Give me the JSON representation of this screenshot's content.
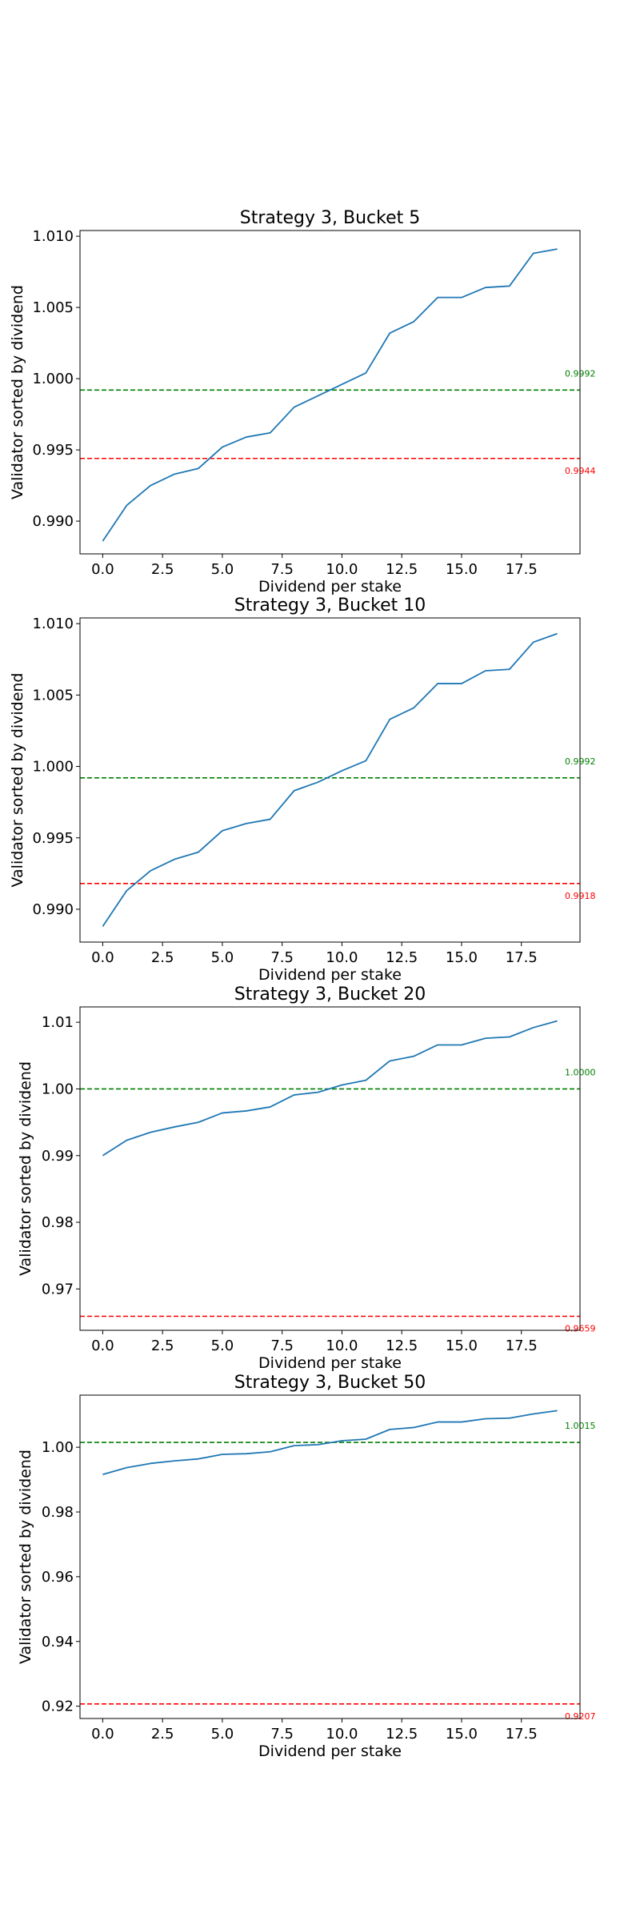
{
  "chart_data": [
    {
      "type": "line",
      "title": "Strategy 3, Bucket 5",
      "xlabel": "Dividend per stake",
      "ylabel": "Validator sorted by dividend",
      "xlim": [
        -0.95,
        19.95
      ],
      "ylim": [
        0.9877,
        1.0104
      ],
      "xticks": [
        "0.0",
        "2.5",
        "5.0",
        "7.5",
        "10.0",
        "12.5",
        "15.0",
        "17.5"
      ],
      "yticks": [
        "0.990",
        "0.995",
        "1.000",
        "1.005",
        "1.010"
      ],
      "series": [
        {
          "color": "#1f77b4",
          "x": [
            0,
            1,
            2,
            3,
            4,
            5,
            6,
            7,
            8,
            9,
            10,
            11,
            12,
            13,
            14,
            15,
            16,
            17,
            18,
            19
          ],
          "values": [
            0.9886,
            0.9911,
            0.9925,
            0.9933,
            0.9937,
            0.9952,
            0.9959,
            0.9962,
            0.998,
            0.9988,
            0.9996,
            1.0004,
            1.0032,
            1.004,
            1.0057,
            1.0057,
            1.0064,
            1.0065,
            1.0088,
            1.0091
          ]
        }
      ],
      "reference_lines": [
        {
          "value": 0.9992,
          "label": "0.9992",
          "color": "#008000"
        },
        {
          "value": 0.9944,
          "label": "0.9944",
          "color": "#ff0000"
        }
      ]
    },
    {
      "type": "line",
      "title": "Strategy 3, Bucket 10",
      "xlabel": "Dividend per stake",
      "ylabel": "Validator sorted by dividend",
      "xlim": [
        -0.95,
        19.95
      ],
      "ylim": [
        0.9877,
        1.0104
      ],
      "xticks": [
        "0.0",
        "2.5",
        "5.0",
        "7.5",
        "10.0",
        "12.5",
        "15.0",
        "17.5"
      ],
      "yticks": [
        "0.990",
        "0.995",
        "1.000",
        "1.005",
        "1.010"
      ],
      "series": [
        {
          "color": "#1f77b4",
          "x": [
            0,
            1,
            2,
            3,
            4,
            5,
            6,
            7,
            8,
            9,
            10,
            11,
            12,
            13,
            14,
            15,
            16,
            17,
            18,
            19
          ],
          "values": [
            0.9888,
            0.9913,
            0.9927,
            0.9935,
            0.994,
            0.9955,
            0.996,
            0.9963,
            0.9983,
            0.9989,
            0.9997,
            1.0004,
            1.0033,
            1.0041,
            1.0058,
            1.0058,
            1.0067,
            1.0068,
            1.0087,
            1.0093
          ]
        }
      ],
      "reference_lines": [
        {
          "value": 0.9992,
          "label": "0.9992",
          "color": "#008000"
        },
        {
          "value": 0.9918,
          "label": "0.9918",
          "color": "#ff0000"
        }
      ]
    },
    {
      "type": "line",
      "title": "Strategy 3, Bucket 20",
      "xlabel": "Dividend per stake",
      "ylabel": "Validator sorted by dividend",
      "xlim": [
        -0.95,
        19.95
      ],
      "ylim": [
        0.9638,
        1.0123
      ],
      "xticks": [
        "0.0",
        "2.5",
        "5.0",
        "7.5",
        "10.0",
        "12.5",
        "15.0",
        "17.5"
      ],
      "yticks": [
        "0.97",
        "0.98",
        "0.99",
        "1.00",
        "1.01"
      ],
      "series": [
        {
          "color": "#1f77b4",
          "x": [
            0,
            1,
            2,
            3,
            4,
            5,
            6,
            7,
            8,
            9,
            10,
            11,
            12,
            13,
            14,
            15,
            16,
            17,
            18,
            19
          ],
          "values": [
            0.99,
            0.9923,
            0.9935,
            0.9943,
            0.995,
            0.9964,
            0.9967,
            0.9973,
            0.9991,
            0.9995,
            1.0006,
            1.0013,
            1.0042,
            1.0049,
            1.0066,
            1.0066,
            1.0076,
            1.0078,
            1.0092,
            1.0102
          ]
        }
      ],
      "reference_lines": [
        {
          "value": 1.0,
          "label": "1.0000",
          "color": "#008000"
        },
        {
          "value": 0.9659,
          "label": "0.9659",
          "color": "#ff0000"
        }
      ]
    },
    {
      "type": "line",
      "title": "Strategy 3, Bucket 50",
      "xlabel": "Dividend per stake",
      "ylabel": "Validator sorted by dividend",
      "xlim": [
        -0.95,
        19.95
      ],
      "ylim": [
        0.9162,
        1.0161
      ],
      "xticks": [
        "0.0",
        "2.5",
        "5.0",
        "7.5",
        "10.0",
        "12.5",
        "15.0",
        "17.5"
      ],
      "yticks": [
        "0.92",
        "0.94",
        "0.96",
        "0.98",
        "1.00"
      ],
      "series": [
        {
          "color": "#1f77b4",
          "x": [
            0,
            1,
            2,
            3,
            4,
            5,
            6,
            7,
            8,
            9,
            10,
            11,
            12,
            13,
            14,
            15,
            16,
            17,
            18,
            19
          ],
          "values": [
            0.9916,
            0.9937,
            0.995,
            0.9958,
            0.9964,
            0.9978,
            0.998,
            0.9986,
            1.0005,
            1.0008,
            1.002,
            1.0025,
            1.0055,
            1.0061,
            1.0078,
            1.0078,
            1.0088,
            1.009,
            1.0103,
            1.0113
          ]
        }
      ],
      "reference_lines": [
        {
          "value": 1.0015,
          "label": "1.0015",
          "color": "#008000"
        },
        {
          "value": 0.9207,
          "label": "0.9207",
          "color": "#ff0000"
        }
      ]
    }
  ]
}
